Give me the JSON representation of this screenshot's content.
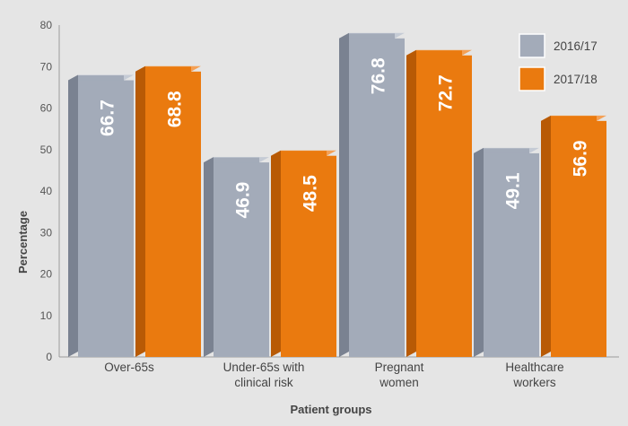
{
  "chart_data": {
    "type": "bar",
    "title": "",
    "xlabel": "Patient groups",
    "ylabel": "Percentage",
    "ylim": [
      0,
      80
    ],
    "yticks": [
      0,
      10,
      20,
      30,
      40,
      50,
      60,
      70,
      80
    ],
    "categories": [
      [
        "Over-65s"
      ],
      [
        "Under-65s with",
        "clinical risk"
      ],
      [
        "Pregnant",
        "women"
      ],
      [
        "Healthcare",
        "workers"
      ]
    ],
    "series": [
      {
        "name": "2016/17",
        "values": [
          66.7,
          46.9,
          76.8,
          49.1
        ],
        "labels": [
          "66.7",
          "46.9",
          "76.8",
          "49.1"
        ]
      },
      {
        "name": "2017/18",
        "values": [
          68.8,
          48.5,
          72.7,
          56.9
        ],
        "labels": [
          "68.8",
          "48.5",
          "72.7",
          "56.9"
        ]
      }
    ],
    "legend_position": "top-right",
    "grid": false,
    "colors": {
      "2016/17": {
        "front": "#a3abb9",
        "side": "#7a8291",
        "top": "#c5cbd5"
      },
      "2017/18": {
        "front": "#ea7a0f",
        "side": "#b85a05",
        "top": "#f4a055"
      },
      "background": "#e5e5e5"
    }
  }
}
